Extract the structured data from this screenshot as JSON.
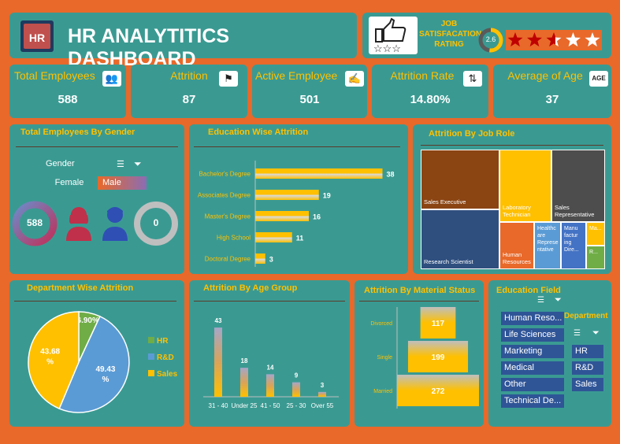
{
  "header": {
    "title": "HR ANALYTITICS DASHBOARD",
    "logo_text": "HR",
    "rating_label_line1": "JOB",
    "rating_label_line2": "SATISFACATION",
    "rating_label_line3": "RATING",
    "rating_value": "2.6",
    "rating_stars": 2.6,
    "rating_max": 5
  },
  "kpis": [
    {
      "label": "Total Employees",
      "value": "588",
      "icon": "people-group-icon"
    },
    {
      "label": "Attrition",
      "value": "87",
      "icon": "people-leaving-icon"
    },
    {
      "label": "Active Employee",
      "value": "501",
      "icon": "desk-worker-icon"
    },
    {
      "label": "Attrition Rate",
      "value": "14.80%",
      "icon": "arrows-people-icon"
    },
    {
      "label": "Average of Age",
      "value": "37",
      "icon": "age-icon"
    }
  ],
  "gender": {
    "title": "Total Employees By Gender",
    "slicer_title": "Gender",
    "options": [
      "Female",
      "Male"
    ],
    "female_count": "588",
    "male_count": "0"
  },
  "education_field": {
    "title": "Education Field",
    "items": [
      "Human Reso...",
      "Life Sciences",
      "Marketing",
      "Medical",
      "Other",
      "Technical De..."
    ]
  },
  "department_slicer": {
    "title": "Department",
    "items": [
      "HR",
      "R&D",
      "Sales"
    ]
  },
  "colors": {
    "background": "#E8692A",
    "card": "#3A9A92",
    "accent": "#FFC000",
    "blue": "#5B9BD5",
    "green": "#70AD47",
    "brown": "#8B4513"
  },
  "chart_data": [
    {
      "type": "bar",
      "orientation": "horizontal",
      "title": "Education Wise Attrition",
      "categories": [
        "Bachelor's Degree",
        "Associates Degree",
        "Master's Degree",
        "High School",
        "Doctoral Degree"
      ],
      "values": [
        38,
        19,
        16,
        11,
        3
      ],
      "xlim": [
        0,
        40
      ]
    },
    {
      "type": "treemap",
      "title": "Attrition By Job Role",
      "items": [
        {
          "label": "Sales Executive",
          "value": 24,
          "color": "#8B4513"
        },
        {
          "label": "Research Scientist",
          "value": 20,
          "color": "#2F4F7F"
        },
        {
          "label": "Laboratory Technician",
          "value": 17,
          "color": "#FFC000"
        },
        {
          "label": "Sales Representative",
          "value": 11,
          "color": "#4D4D4D"
        },
        {
          "label": "Human Resources",
          "value": 5,
          "color": "#E8692A"
        },
        {
          "label": "Healthcare Representative",
          "value": 4,
          "color": "#5B9BD5"
        },
        {
          "label": "Manufacturing Director",
          "value": 3,
          "color": "#4472C4"
        },
        {
          "label": "Ma...",
          "value": 2,
          "color": "#FFC000"
        },
        {
          "label": "R...",
          "value": 1,
          "color": "#70AD47"
        }
      ],
      "display_labels": {
        "Healthcare Representative": "Healthc are Represe ntative",
        "Manufacturing Director": "Manu factur ing Dire...",
        "Ma...": "Ma...",
        "R...": "R..."
      }
    },
    {
      "type": "pie",
      "title": "Department Wise Attrition",
      "series": [
        {
          "name": "HR",
          "value": 6.9,
          "label": "6.90%",
          "color": "#70AD47"
        },
        {
          "name": "R&D",
          "value": 49.43,
          "label": "49.43 %",
          "color": "#5B9BD5"
        },
        {
          "name": "Sales",
          "value": 43.68,
          "label": "43.68 %",
          "color": "#FFC000"
        }
      ],
      "legend": "right"
    },
    {
      "type": "bar",
      "title": "Attrition By Age Group",
      "categories": [
        "31 - 40",
        "Under 25",
        "41 - 50",
        "25 - 30",
        "Over 55"
      ],
      "category_labels": [
        "31 - 40",
        "Under 25",
        "41 - 50",
        "25 - 30",
        "Over 55"
      ],
      "values": [
        43,
        18,
        14,
        9,
        3
      ],
      "ylim": [
        0,
        45
      ]
    },
    {
      "type": "bar",
      "orientation": "horizontal",
      "title": "Attrition By Material Status",
      "categories": [
        "Divorced",
        "Single",
        "Married"
      ],
      "values": [
        117,
        199,
        272
      ],
      "style": "funnel"
    }
  ]
}
